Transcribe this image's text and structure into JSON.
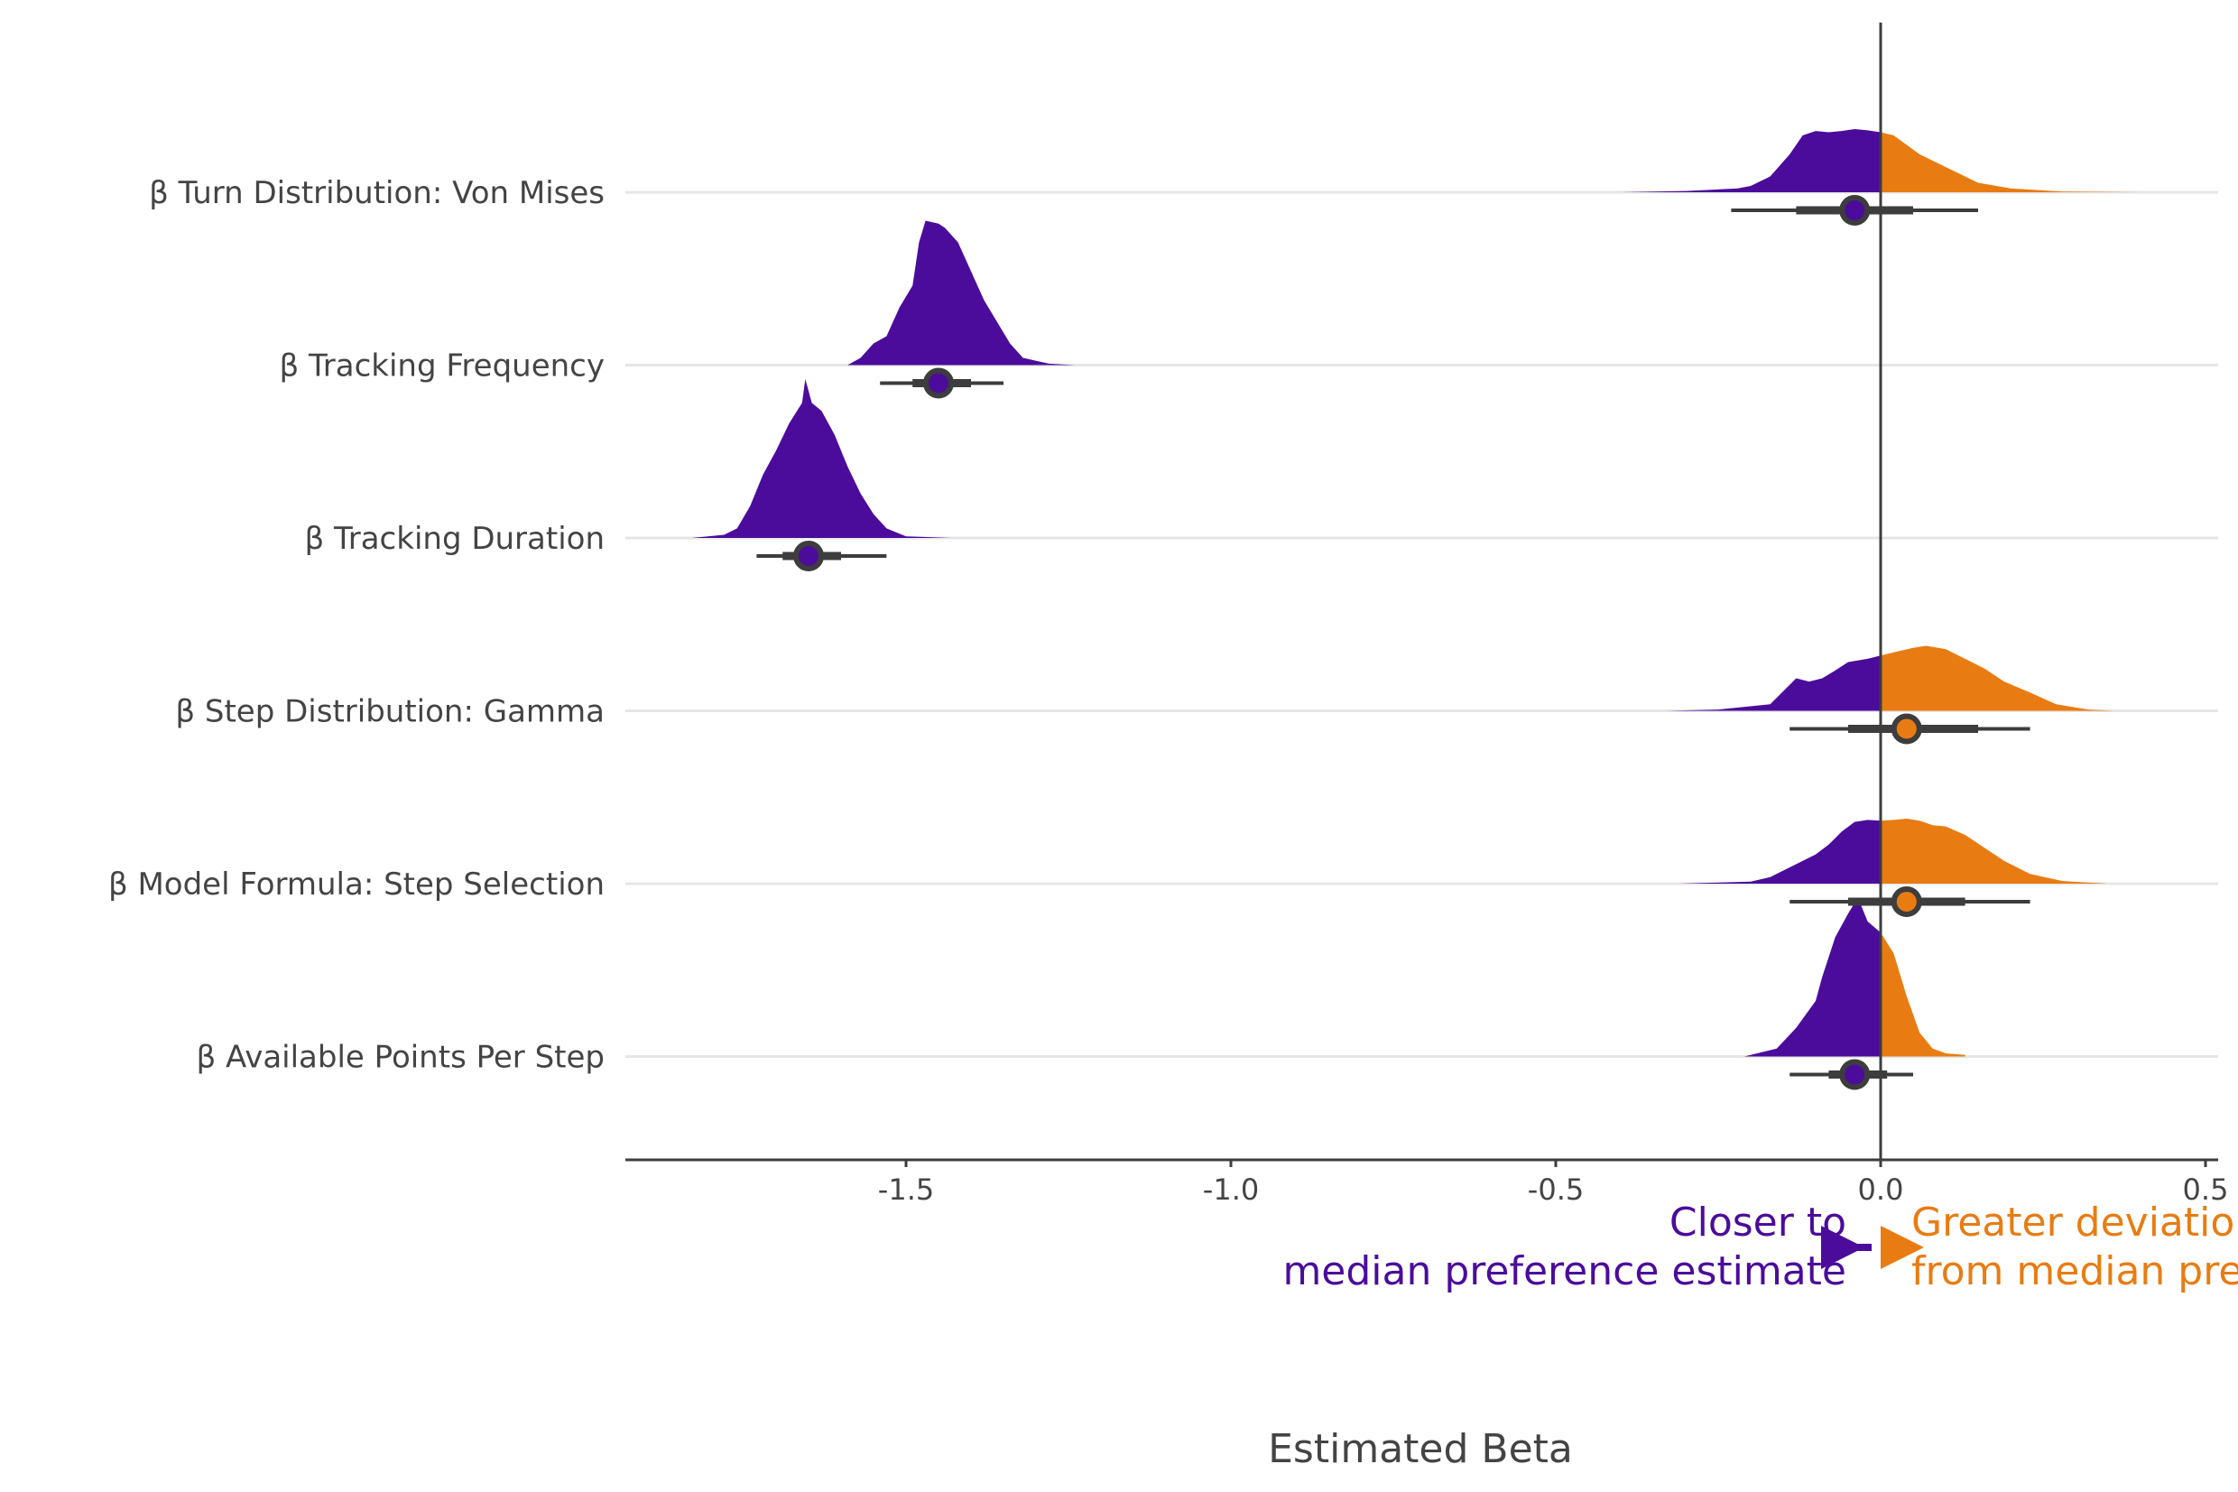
{
  "chart_data": {
    "type": "ridgeline-density",
    "xlabel": "Estimated Beta",
    "xlim": [
      -1.93,
      0.52
    ],
    "xticks": [
      -1.5,
      -1.0,
      -0.5,
      0.0,
      0.5
    ],
    "xtick_labels": [
      "-1.5",
      "-1.0",
      "-0.5",
      "0.0",
      "0.5"
    ],
    "reference_line": 0.0,
    "grid": "horizontal only",
    "colors": {
      "below_zero": "#4b0c9b",
      "above_zero": "#e87c12",
      "interval": "#3d3d3d",
      "grid": "#e6e6e6",
      "axis": "#3d3d3d"
    },
    "categories": [
      "β Turn Distribution: Von Mises",
      "β Tracking Frequency",
      "β Tracking Duration",
      "β Step Distribution: Gamma",
      "β Model Formula: Step Selection",
      "β Available Points Per Step"
    ],
    "series": [
      {
        "name": "β Turn Distribution: Von Mises",
        "median": -0.04,
        "interval_66": [
          -0.13,
          0.05
        ],
        "interval_95": [
          -0.23,
          0.15
        ],
        "density_height": 0.35,
        "density": [
          [
            -0.4,
            0
          ],
          [
            -0.3,
            0.02
          ],
          [
            -0.22,
            0.06
          ],
          [
            -0.2,
            0.1
          ],
          [
            -0.17,
            0.25
          ],
          [
            -0.14,
            0.6
          ],
          [
            -0.12,
            0.9
          ],
          [
            -0.1,
            0.97
          ],
          [
            -0.08,
            0.95
          ],
          [
            -0.06,
            0.97
          ],
          [
            -0.04,
            1.0
          ],
          [
            -0.02,
            0.98
          ],
          [
            0.0,
            0.95
          ],
          [
            0.02,
            0.9
          ],
          [
            0.04,
            0.75
          ],
          [
            0.06,
            0.6
          ],
          [
            0.09,
            0.45
          ],
          [
            0.12,
            0.3
          ],
          [
            0.15,
            0.15
          ],
          [
            0.2,
            0.06
          ],
          [
            0.28,
            0.01
          ],
          [
            0.4,
            0
          ]
        ]
      },
      {
        "name": "β Tracking Frequency",
        "median": -1.45,
        "interval_66": [
          -1.49,
          -1.4
        ],
        "interval_95": [
          -1.54,
          -1.35
        ],
        "density_height": 0.8,
        "density": [
          [
            -1.59,
            0
          ],
          [
            -1.57,
            0.05
          ],
          [
            -1.55,
            0.15
          ],
          [
            -1.53,
            0.2
          ],
          [
            -1.51,
            0.4
          ],
          [
            -1.49,
            0.55
          ],
          [
            -1.48,
            0.85
          ],
          [
            -1.47,
            1.0
          ],
          [
            -1.45,
            0.98
          ],
          [
            -1.44,
            0.95
          ],
          [
            -1.42,
            0.85
          ],
          [
            -1.4,
            0.65
          ],
          [
            -1.38,
            0.45
          ],
          [
            -1.36,
            0.3
          ],
          [
            -1.34,
            0.15
          ],
          [
            -1.32,
            0.05
          ],
          [
            -1.28,
            0.01
          ],
          [
            -1.24,
            0
          ]
        ]
      },
      {
        "name": "β Tracking Duration",
        "median": -1.65,
        "interval_66": [
          -1.69,
          -1.6
        ],
        "interval_95": [
          -1.73,
          -1.53
        ],
        "density_height": 0.88,
        "density": [
          [
            -1.83,
            0
          ],
          [
            -1.78,
            0.02
          ],
          [
            -1.76,
            0.06
          ],
          [
            -1.74,
            0.2
          ],
          [
            -1.72,
            0.4
          ],
          [
            -1.7,
            0.55
          ],
          [
            -1.68,
            0.72
          ],
          [
            -1.66,
            0.85
          ],
          [
            -1.655,
            1.0
          ],
          [
            -1.645,
            0.85
          ],
          [
            -1.63,
            0.8
          ],
          [
            -1.61,
            0.65
          ],
          [
            -1.59,
            0.45
          ],
          [
            -1.57,
            0.28
          ],
          [
            -1.55,
            0.15
          ],
          [
            -1.53,
            0.06
          ],
          [
            -1.5,
            0.01
          ],
          [
            -1.43,
            0
          ]
        ]
      },
      {
        "name": "β Step Distribution: Gamma",
        "median": 0.04,
        "interval_66": [
          -0.05,
          0.15
        ],
        "interval_95": [
          -0.14,
          0.23
        ],
        "density_height": 0.36,
        "density": [
          [
            -0.33,
            0
          ],
          [
            -0.25,
            0.02
          ],
          [
            -0.17,
            0.1
          ],
          [
            -0.15,
            0.3
          ],
          [
            -0.13,
            0.5
          ],
          [
            -0.11,
            0.45
          ],
          [
            -0.09,
            0.5
          ],
          [
            -0.07,
            0.62
          ],
          [
            -0.05,
            0.75
          ],
          [
            -0.02,
            0.8
          ],
          [
            0.0,
            0.85
          ],
          [
            0.02,
            0.9
          ],
          [
            0.05,
            0.97
          ],
          [
            0.07,
            1.0
          ],
          [
            0.1,
            0.95
          ],
          [
            0.13,
            0.8
          ],
          [
            0.16,
            0.65
          ],
          [
            0.19,
            0.45
          ],
          [
            0.23,
            0.28
          ],
          [
            0.27,
            0.1
          ],
          [
            0.32,
            0.02
          ],
          [
            0.36,
            0
          ]
        ]
      },
      {
        "name": "β Model Formula: Step Selection",
        "median": 0.04,
        "interval_66": [
          -0.05,
          0.13
        ],
        "interval_95": [
          -0.14,
          0.23
        ],
        "density_height": 0.36,
        "density": [
          [
            -0.31,
            0
          ],
          [
            -0.2,
            0.03
          ],
          [
            -0.17,
            0.1
          ],
          [
            -0.13,
            0.3
          ],
          [
            -0.1,
            0.45
          ],
          [
            -0.08,
            0.6
          ],
          [
            -0.06,
            0.8
          ],
          [
            -0.04,
            0.95
          ],
          [
            -0.02,
            0.98
          ],
          [
            0.0,
            0.97
          ],
          [
            0.02,
            0.98
          ],
          [
            0.04,
            1.0
          ],
          [
            0.06,
            0.97
          ],
          [
            0.08,
            0.9
          ],
          [
            0.1,
            0.88
          ],
          [
            0.13,
            0.75
          ],
          [
            0.16,
            0.55
          ],
          [
            0.19,
            0.35
          ],
          [
            0.23,
            0.15
          ],
          [
            0.28,
            0.04
          ],
          [
            0.35,
            0
          ]
        ]
      },
      {
        "name": "β Available Points Per Step",
        "median": -0.04,
        "interval_66": [
          -0.08,
          0.01
        ],
        "interval_95": [
          -0.14,
          0.05
        ],
        "density_height": 0.88,
        "density": [
          [
            -0.21,
            0
          ],
          [
            -0.16,
            0.05
          ],
          [
            -0.13,
            0.18
          ],
          [
            -0.1,
            0.35
          ],
          [
            -0.09,
            0.5
          ],
          [
            -0.07,
            0.75
          ],
          [
            -0.05,
            0.9
          ],
          [
            -0.035,
            1.0
          ],
          [
            -0.02,
            0.85
          ],
          [
            0.0,
            0.78
          ],
          [
            0.02,
            0.65
          ],
          [
            0.04,
            0.38
          ],
          [
            0.06,
            0.15
          ],
          [
            0.08,
            0.05
          ],
          [
            0.1,
            0.02
          ],
          [
            0.13,
            0.01
          ],
          [
            0.13,
            0
          ]
        ]
      }
    ],
    "annotations": {
      "left": {
        "lines": [
          "Closer to",
          "median preference estimate"
        ],
        "color": "#4b0c9b"
      },
      "right": {
        "lines": [
          "Greater deviation",
          "from median preference"
        ],
        "color": "#e87c12"
      }
    }
  }
}
